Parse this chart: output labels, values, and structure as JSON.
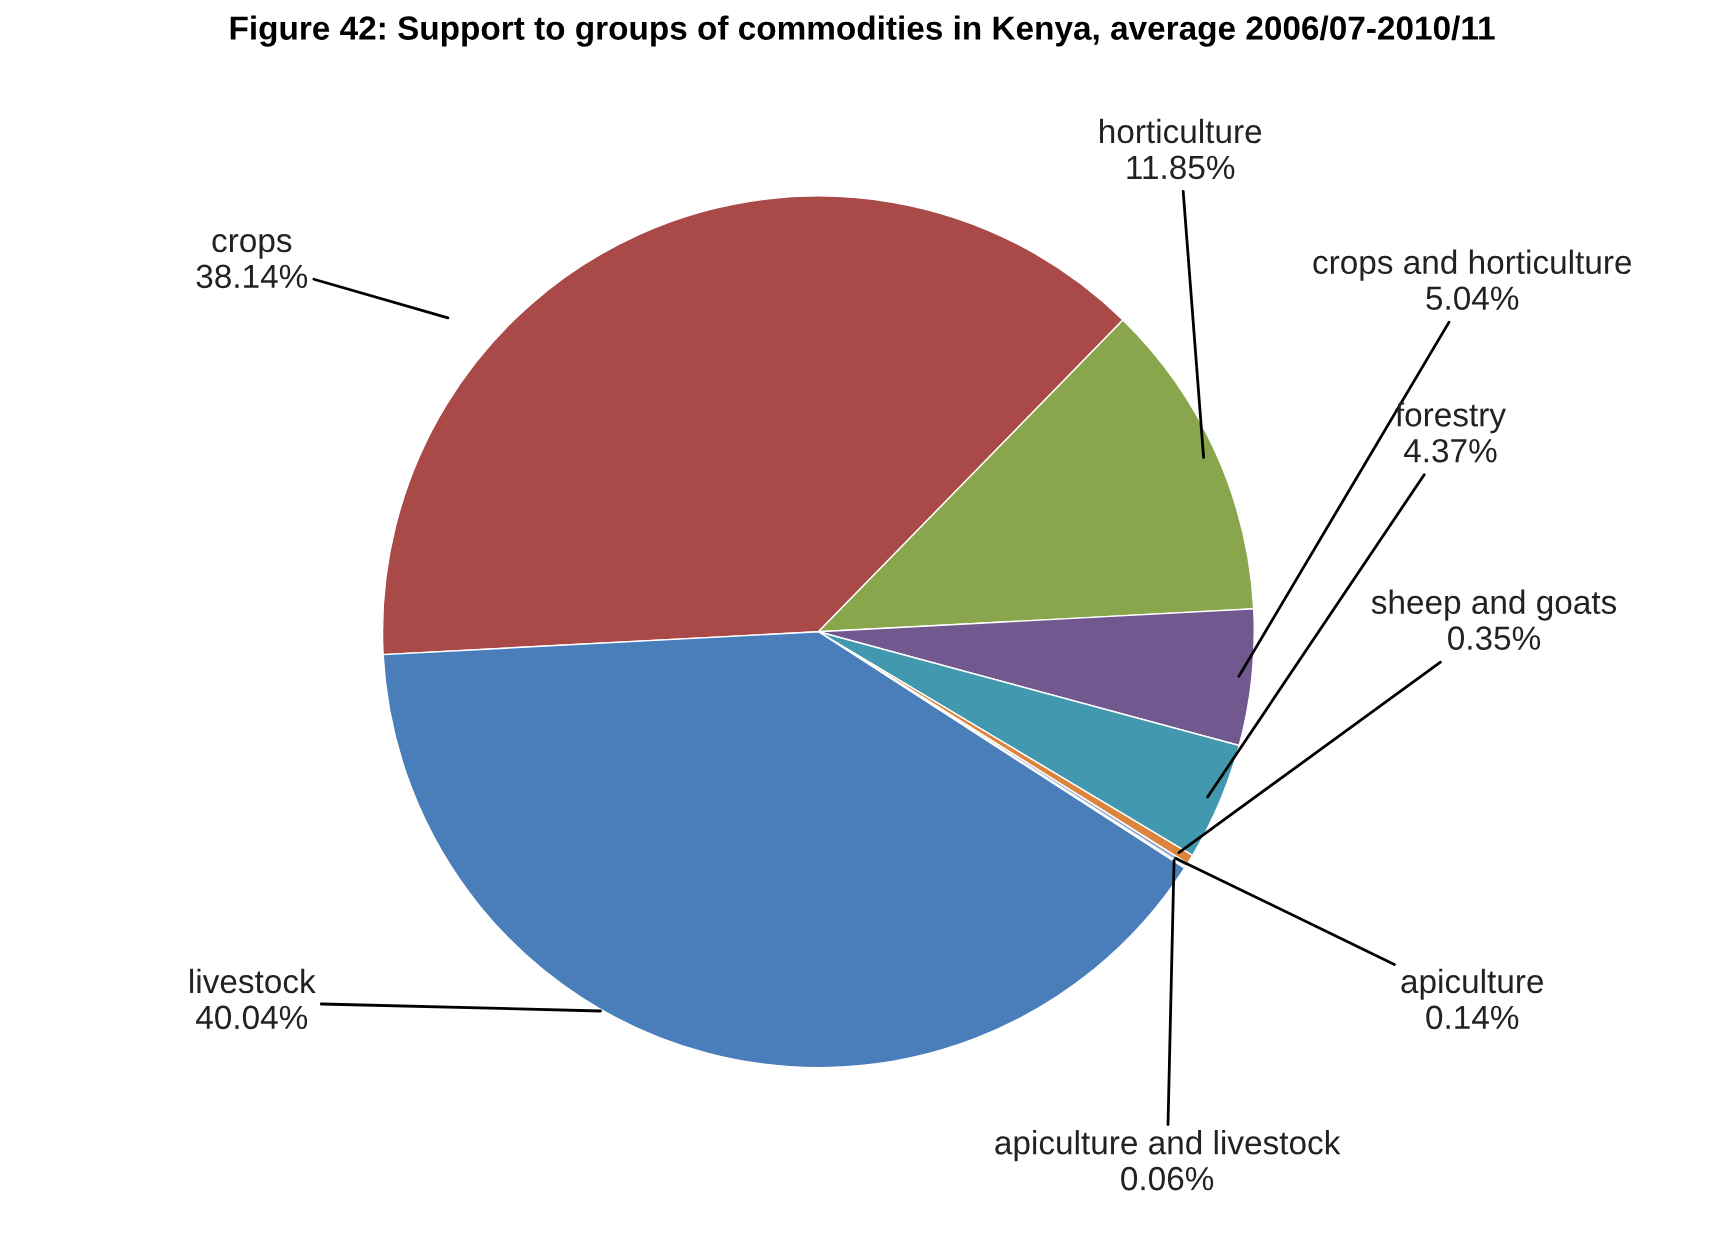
{
  "chart_data": {
    "type": "pie",
    "title": "Figure 42: Support to groups of commodities in Kenya, average 2006/07-2010/11",
    "categories": [
      "crops",
      "horticulture",
      "crops and horticulture",
      "forestry",
      "sheep and goats",
      "apiculture",
      "apiculture and livestock",
      "livestock"
    ],
    "values": [
      38.14,
      11.85,
      5.04,
      4.37,
      0.35,
      0.14,
      0.06,
      40.04
    ],
    "colors": [
      "#a94a48",
      "#8aa64c",
      "#71588f",
      "#4198af",
      "#db843d",
      "#93a9cf",
      "#b9cd96",
      "#4a7ebb"
    ],
    "value_labels": [
      "38.14%",
      "11.85%",
      "5.04%",
      "4.37%",
      "0.35%",
      "0.14%",
      "0.06%",
      "40.04%"
    ],
    "legend": false
  }
}
